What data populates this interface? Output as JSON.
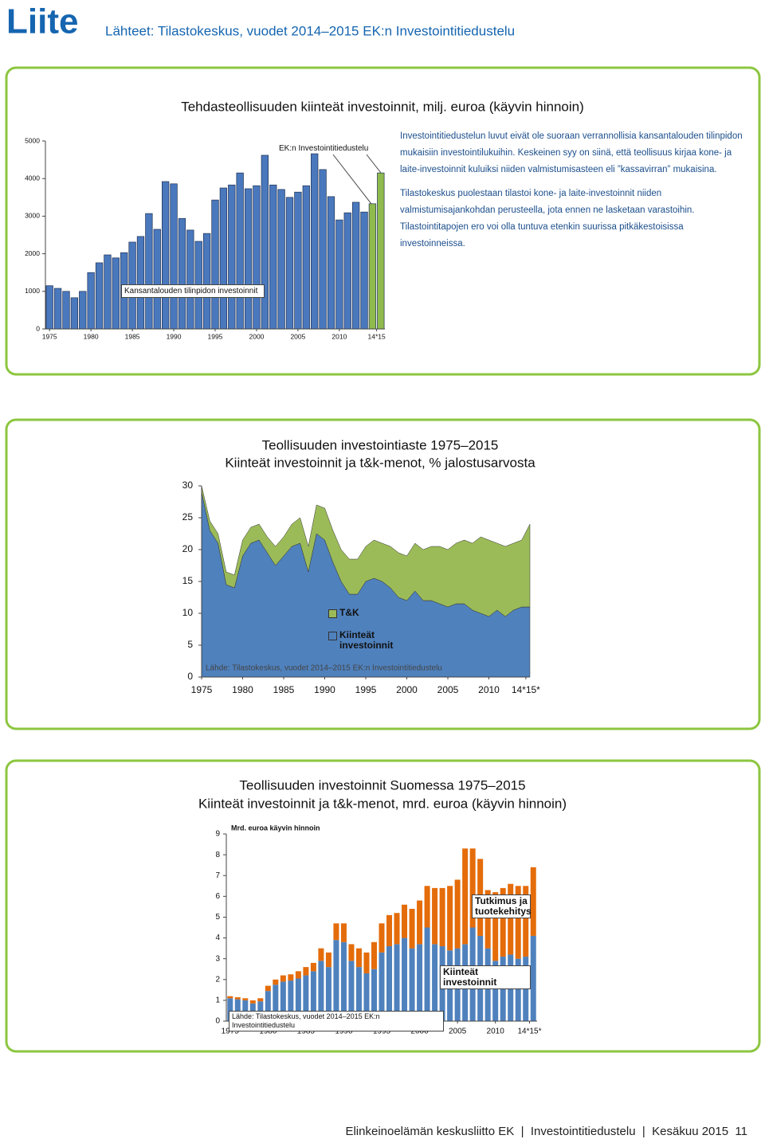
{
  "header": {
    "title": "Liite",
    "sources": "Lähteet: Tilastokeskus, vuodet 2014–2015 EK:n Investointitiedustelu"
  },
  "notes": [
    "Investointitiedustelun luvut eivät ole suoraan verrannollisia kansantalouden tilinpidon mukaisiin investointilukuihin. Keskeinen syy on siinä, että teollisuus kirjaa kone- ja laite-investoinnit kuluiksi niiden valmistumisasteen eli ”kassavirran” mukaisina.",
    "Tilastokeskus puolestaan tilastoi kone- ja laite-investoinnit niiden valmistumisajankohdan perusteella, jota ennen ne lasketaan varastoihin.",
    "Tilastointitapojen ero voi olla tuntuva etenkin suurissa pitkäkestoisissa investoinneissa."
  ],
  "chart_data": [
    {
      "type": "bar",
      "stacked": false,
      "grid": false,
      "title": "Tehdasteollisuuden kiinteät investoinnit, milj. euroa (käyvin hinnoin)",
      "x": [
        1975,
        1976,
        1977,
        1978,
        1979,
        1980,
        1981,
        1982,
        1983,
        1984,
        1985,
        1986,
        1987,
        1988,
        1989,
        1990,
        1991,
        1992,
        1993,
        1994,
        1995,
        1996,
        1997,
        1998,
        1999,
        2000,
        2001,
        2002,
        2003,
        2004,
        2005,
        2006,
        2007,
        2008,
        2009,
        2010,
        2011,
        2012,
        2013,
        2014,
        2015
      ],
      "xlim": [
        1974.5,
        2015.5
      ],
      "xticks": [
        1975,
        1980,
        1985,
        1990,
        1995,
        2000,
        2005,
        2010,
        {
          "value": 2014.5,
          "label": "14*15"
        }
      ],
      "ylim": [
        0,
        5000
      ],
      "yticks": [
        0,
        1000,
        2000,
        3000,
        4000,
        5000
      ],
      "series": [
        {
          "name": "Kansantalouden tilinpidon investoinnit",
          "color": "#4a78bd",
          "values": [
            1150,
            1080,
            1000,
            830,
            1000,
            1500,
            1760,
            1970,
            1890,
            2030,
            2310,
            2460,
            3070,
            2650,
            3920,
            3860,
            2940,
            2630,
            2330,
            2540,
            3430,
            3750,
            3830,
            4150,
            3730,
            3810,
            4620,
            3830,
            3710,
            3500,
            3640,
            3810,
            4660,
            4240,
            3520,
            2900,
            3090,
            3370,
            3110,
            null,
            null
          ]
        },
        {
          "name": "EK:n Investointitiedustelu",
          "color": "#8fba4e",
          "values": [
            null,
            null,
            null,
            null,
            null,
            null,
            null,
            null,
            null,
            null,
            null,
            null,
            null,
            null,
            null,
            null,
            null,
            null,
            null,
            null,
            null,
            null,
            null,
            null,
            null,
            null,
            null,
            null,
            null,
            null,
            null,
            null,
            null,
            null,
            null,
            null,
            null,
            null,
            null,
            3330,
            4150
          ]
        }
      ]
    },
    {
      "type": "area",
      "stacked": true,
      "grid": false,
      "title": "Teollisuuden investointiaste 1975–2015",
      "subtitle": "Kiinteät investoinnit ja t&k-menot, % jalostusarvosta",
      "source": "Lähde: Tilastokeskus, vuodet 2014–2015 EK:n Investointitiedustelu",
      "x": [
        1975,
        1976,
        1977,
        1978,
        1979,
        1980,
        1981,
        1982,
        1983,
        1984,
        1985,
        1986,
        1987,
        1988,
        1989,
        1990,
        1991,
        1992,
        1993,
        1994,
        1995,
        1996,
        1997,
        1998,
        1999,
        2000,
        2001,
        2002,
        2003,
        2004,
        2005,
        2006,
        2007,
        2008,
        2009,
        2010,
        2011,
        2012,
        2013,
        2014,
        2015
      ],
      "xlim": [
        1975,
        2015
      ],
      "xticks": [
        1975,
        1980,
        1985,
        1990,
        1995,
        2000,
        2005,
        2010,
        {
          "value": 2014.5,
          "label": "14*15*"
        }
      ],
      "ylim": [
        0,
        30
      ],
      "yticks": [
        0,
        5,
        10,
        15,
        20,
        25,
        30
      ],
      "series": [
        {
          "name": "Kiinteät investoinnit",
          "color": "#4f81bd",
          "values": [
            29,
            23,
            21,
            14.5,
            14,
            19,
            21,
            21.5,
            19.5,
            17.5,
            19,
            20.5,
            21,
            16.5,
            22.5,
            21.5,
            18,
            15,
            13,
            13,
            15,
            15.5,
            15,
            14,
            12.5,
            12,
            13.5,
            12,
            12,
            11.5,
            11,
            11.5,
            11.5,
            10.5,
            10,
            9.5,
            10.5,
            9.5,
            10.5,
            11,
            11
          ]
        },
        {
          "name": "T&K",
          "color": "#9bbb59",
          "values": [
            1,
            1.5,
            1.5,
            2,
            2,
            2.5,
            2.5,
            2.5,
            2.5,
            3,
            3,
            3.5,
            4,
            4,
            4.5,
            5,
            5,
            5,
            5.5,
            5.5,
            5.5,
            6,
            6,
            6.5,
            7,
            7,
            7.5,
            8,
            8.5,
            9,
            9,
            9.5,
            10,
            10.5,
            12,
            12,
            10.5,
            11,
            10.5,
            10.5,
            13
          ]
        }
      ]
    },
    {
      "type": "bar",
      "stacked": true,
      "grid": false,
      "title": "Teollisuuden investoinnit Suomessa 1975–2015",
      "subtitle": "Kiinteät investoinnit ja t&k-menot, mrd. euroa (käyvin hinnoin)",
      "y_label": "Mrd. euroa käyvin hinnoin",
      "source": "Lähde: Tilastokeskus, vuodet 2014–2015 EK:n Investointitiedustelu",
      "x": [
        1975,
        1976,
        1977,
        1978,
        1979,
        1980,
        1981,
        1982,
        1983,
        1984,
        1985,
        1986,
        1987,
        1988,
        1989,
        1990,
        1991,
        1992,
        1993,
        1994,
        1995,
        1996,
        1997,
        1998,
        1999,
        2000,
        2001,
        2002,
        2003,
        2004,
        2005,
        2006,
        2007,
        2008,
        2009,
        2010,
        2011,
        2012,
        2013,
        2014,
        2015
      ],
      "xlim": [
        1974.5,
        2015.5
      ],
      "xticks": [
        1975,
        1980,
        1985,
        1990,
        1995,
        2000,
        2005,
        2010,
        {
          "value": 2014.5,
          "label": "14*15*"
        }
      ],
      "ylim": [
        0,
        9
      ],
      "yticks": [
        0,
        1,
        2,
        3,
        4,
        5,
        6,
        7,
        8,
        9
      ],
      "series": [
        {
          "name": "Kiinteät investoinnit",
          "color": "#4f81bd",
          "values": [
            1.1,
            1.05,
            1.0,
            0.85,
            0.95,
            1.45,
            1.75,
            1.9,
            1.95,
            2.05,
            2.2,
            2.4,
            2.9,
            2.6,
            3.9,
            3.8,
            2.9,
            2.6,
            2.3,
            2.5,
            3.3,
            3.6,
            3.7,
            4.0,
            3.5,
            3.7,
            4.5,
            3.7,
            3.6,
            3.4,
            3.5,
            3.7,
            4.5,
            4.1,
            3.5,
            2.9,
            3.1,
            3.2,
            3.0,
            3.1,
            4.1
          ]
        },
        {
          "name": "Tutkimus ja tuotekehitys",
          "color": "#e46c0a",
          "values": [
            0.1,
            0.1,
            0.1,
            0.15,
            0.15,
            0.25,
            0.25,
            0.3,
            0.3,
            0.35,
            0.4,
            0.4,
            0.6,
            0.7,
            0.8,
            0.9,
            0.8,
            0.9,
            1.0,
            1.3,
            1.4,
            1.5,
            1.5,
            1.6,
            1.9,
            2.1,
            2.0,
            2.7,
            2.8,
            3.1,
            3.3,
            4.6,
            3.8,
            3.7,
            2.8,
            3.3,
            3.3,
            3.4,
            3.5,
            3.4,
            3.3
          ]
        }
      ]
    }
  ],
  "footer": {
    "organization": "Elinkeinoelämän keskusliitto EK",
    "report": "Investointitiedustelu",
    "date": "Kesäkuu 2015",
    "page": "11"
  }
}
